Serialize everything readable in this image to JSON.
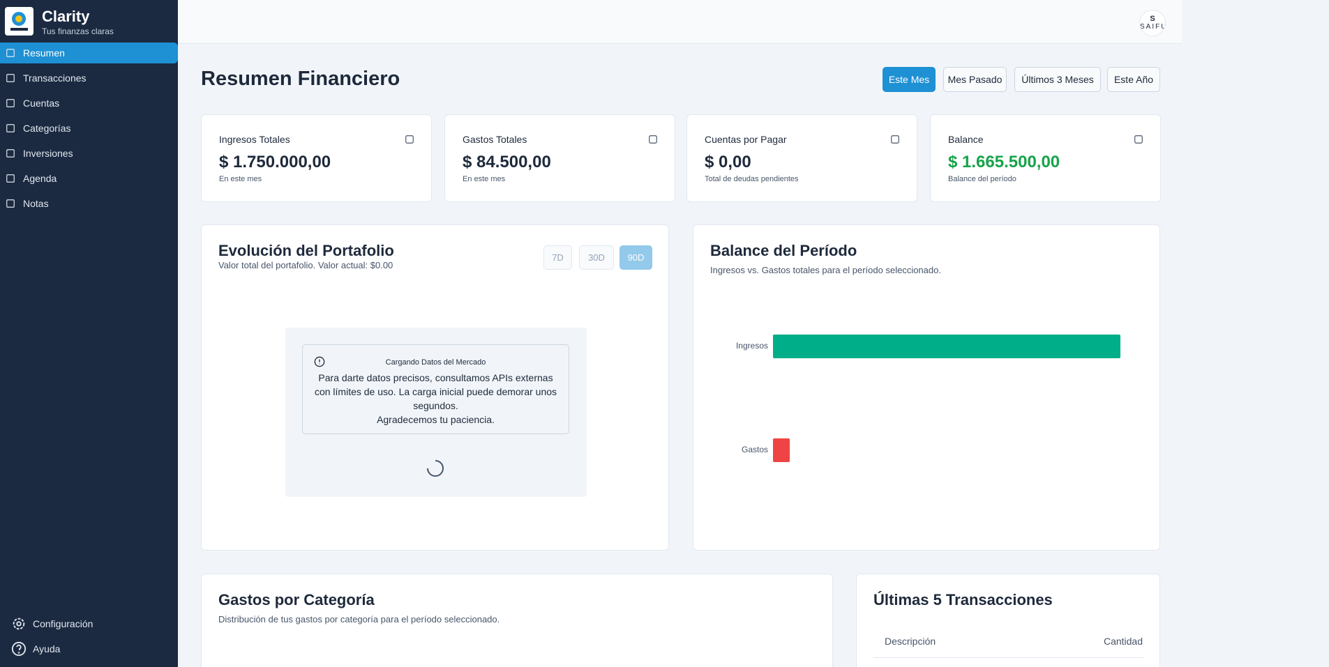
{
  "app": {
    "name": "Clarity",
    "tagline": "Tus finanzas claras"
  },
  "nav": [
    "Resumen",
    "Transacciones",
    "Cuentas",
    "Categorías",
    "Inversiones",
    "Agenda",
    "Notas"
  ],
  "footer_nav": [
    "Configuración",
    "Ayuda"
  ],
  "user": {
    "initial": "S",
    "name": "SAIFU"
  },
  "page": {
    "title": "Resumen Financiero",
    "periods": [
      "Este Mes",
      "Mes Pasado",
      "Últimos 3 Meses",
      "Este Año"
    ]
  },
  "cards": [
    {
      "label": "Ingresos Totales",
      "value": "$ 1.750.000,00",
      "note": "En este mes"
    },
    {
      "label": "Gastos Totales",
      "value": "$ 84.500,00",
      "note": "En este mes"
    },
    {
      "label": "Cuentas por Pagar",
      "value": "$ 0,00",
      "note": "Total de deudas pendientes"
    },
    {
      "label": "Balance",
      "value": "$ 1.665.500,00",
      "note": "Balance del período"
    }
  ],
  "portfolio": {
    "title": "Evolución del Portafolio",
    "subtitle": "Valor total del portafolio. Valor actual: $0.00",
    "ranges": [
      "7D",
      "30D",
      "90D"
    ],
    "notice": {
      "title": "Cargando Datos del Mercado",
      "lines": [
        "Para darte datos precisos, consultamos APIs externas con límites de uso. La carga inicial puede demorar unos segundos.",
        "Agradecemos tu paciencia."
      ]
    }
  },
  "chart_data": {
    "type": "bar",
    "orientation": "horizontal",
    "title": "Balance del Período",
    "subtitle": "Ingresos vs. Gastos totales para el período seleccionado.",
    "categories": [
      "Ingresos",
      "Gastos"
    ],
    "values": [
      1750000,
      84500
    ],
    "colors": [
      "#00ae89",
      "#ef4444"
    ]
  },
  "expenses": {
    "title": "Gastos por Categoría",
    "subtitle": "Distribución de tus gastos por categoría para el período seleccionado."
  },
  "transactions": {
    "title": "Últimas 5 Transacciones",
    "columns": [
      "Descripción",
      "Cantidad"
    ]
  }
}
